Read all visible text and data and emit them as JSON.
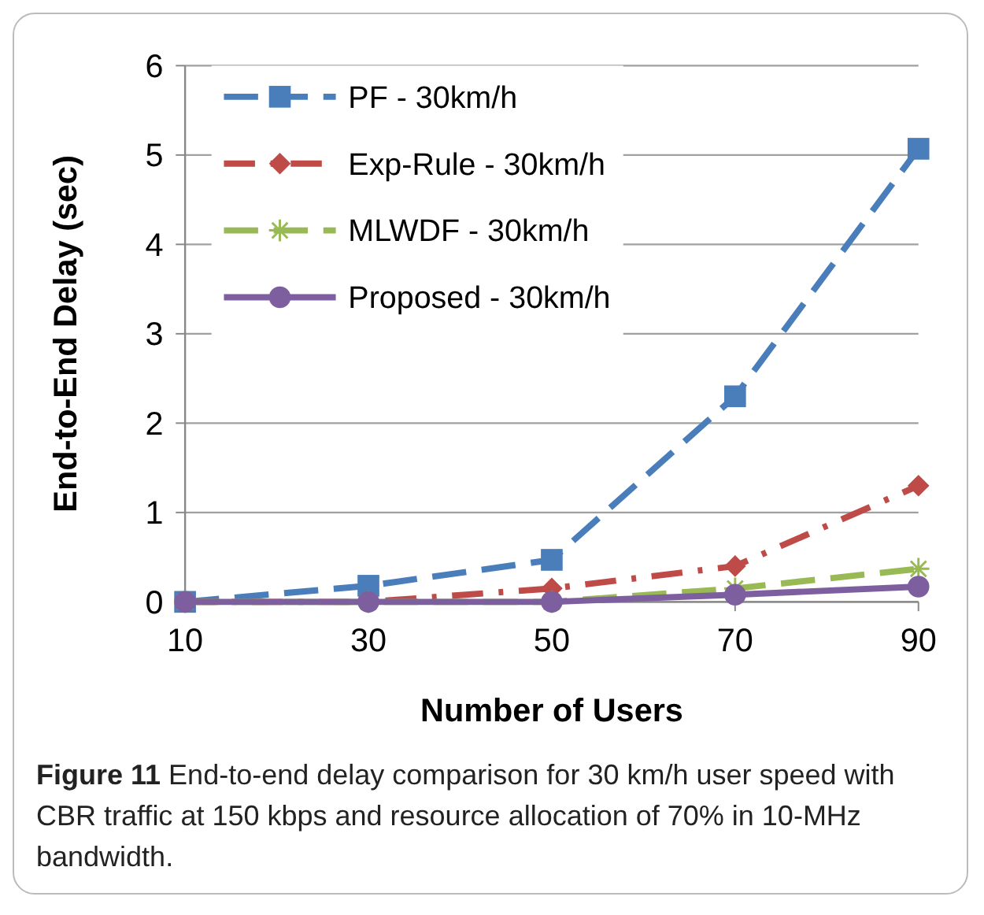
{
  "chart_data": {
    "type": "line",
    "xlabel": "Number of Users",
    "ylabel": "End-to-End Delay (sec)",
    "x": [
      10,
      30,
      50,
      70,
      90
    ],
    "xlim": [
      10,
      90
    ],
    "xticks": [
      10,
      30,
      50,
      70,
      90
    ],
    "ylim": [
      0,
      6
    ],
    "yticks": [
      0,
      1,
      2,
      3,
      4,
      5,
      6
    ],
    "grid": "y",
    "legend": "top left",
    "series": [
      {
        "name": "PF - 30km/h",
        "color": "#4a7ebb",
        "values": [
          0,
          0.18,
          0.47,
          2.3,
          5.07
        ],
        "marker": "square",
        "line_style": "dashed"
      },
      {
        "name": "Exp-Rule - 30km/h",
        "color": "#be4b48",
        "values": [
          0,
          0,
          0.15,
          0.4,
          1.3
        ],
        "marker": "diamond",
        "line_style": "dashdot"
      },
      {
        "name": "MLWDF - 30km/h",
        "color": "#98b954",
        "values": [
          0,
          0,
          0,
          0.15,
          0.37
        ],
        "marker": "cross",
        "line_style": "dashed"
      },
      {
        "name": "Proposed - 30km/h",
        "color": "#7d5fa0",
        "values": [
          0,
          0,
          0,
          0.08,
          0.17
        ],
        "marker": "circle",
        "line_style": "solid"
      }
    ],
    "annotations": [
      "Figure 11",
      "End-to-end delay comparison for 30 km/h user speed with CBR traffic at 150 kbps and resource allocation of 70% in 10-MHz bandwidth."
    ]
  }
}
